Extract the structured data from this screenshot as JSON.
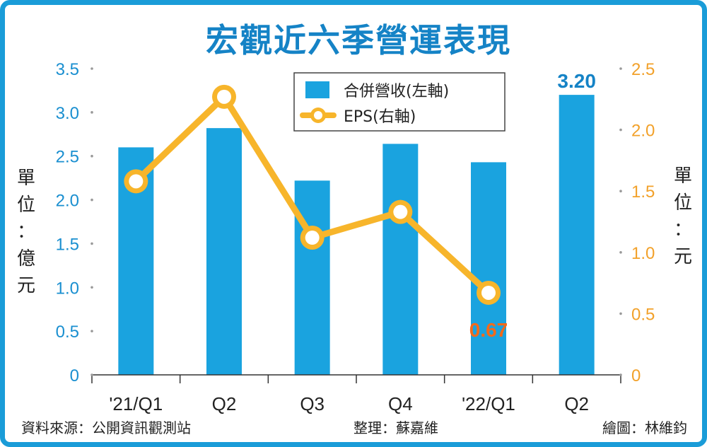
{
  "chart_data": {
    "type": "bar+line",
    "title": "宏觀近六季營運表現",
    "categories": [
      "'21/Q1",
      "Q2",
      "Q3",
      "Q4",
      "'22/Q1",
      "Q2"
    ],
    "series": [
      {
        "name": "合併營收(左軸)",
        "type": "bar",
        "axis": "left",
        "values": [
          2.6,
          2.82,
          2.22,
          2.64,
          2.43,
          3.2
        ],
        "color": "#1aa3df"
      },
      {
        "name": "EPS(右軸)",
        "type": "line",
        "axis": "right",
        "values": [
          1.58,
          2.27,
          1.12,
          1.33,
          0.67,
          null
        ],
        "color": "#f7b52b"
      }
    ],
    "data_labels": [
      {
        "series": 0,
        "index": 5,
        "text": "3.20"
      },
      {
        "series": 1,
        "index": 4,
        "text": "0.67"
      }
    ],
    "y_left": {
      "label": "單位：億元",
      "ylim": [
        0,
        3.5
      ],
      "ticks": [
        "0",
        "0.5",
        "1.0",
        "1.5",
        "2.0",
        "2.5",
        "3.0",
        "3.5"
      ],
      "tick_values": [
        0,
        0.5,
        1.0,
        1.5,
        2.0,
        2.5,
        3.0,
        3.5
      ],
      "color": "#1a8fd0"
    },
    "y_right": {
      "label": "單位：元",
      "ylim": [
        0,
        2.5
      ],
      "ticks": [
        "0",
        "0.5",
        "1.0",
        "1.5",
        "2.0",
        "2.5"
      ],
      "tick_values": [
        0,
        0.5,
        1.0,
        1.5,
        2.0,
        2.5
      ],
      "color": "#f2a12a"
    },
    "legend_position": "top-center",
    "grid": false
  },
  "footer": {
    "source": "資料來源：公開資訊觀測站",
    "editor": "整理：蘇嘉維",
    "artist": "繪圖：林維鈞"
  },
  "colors": {
    "frame": "#1a9cd8",
    "title": "#1583c6",
    "bar": "#1aa3df",
    "line": "#f7b52b",
    "eps_label": "#f26a1b"
  }
}
